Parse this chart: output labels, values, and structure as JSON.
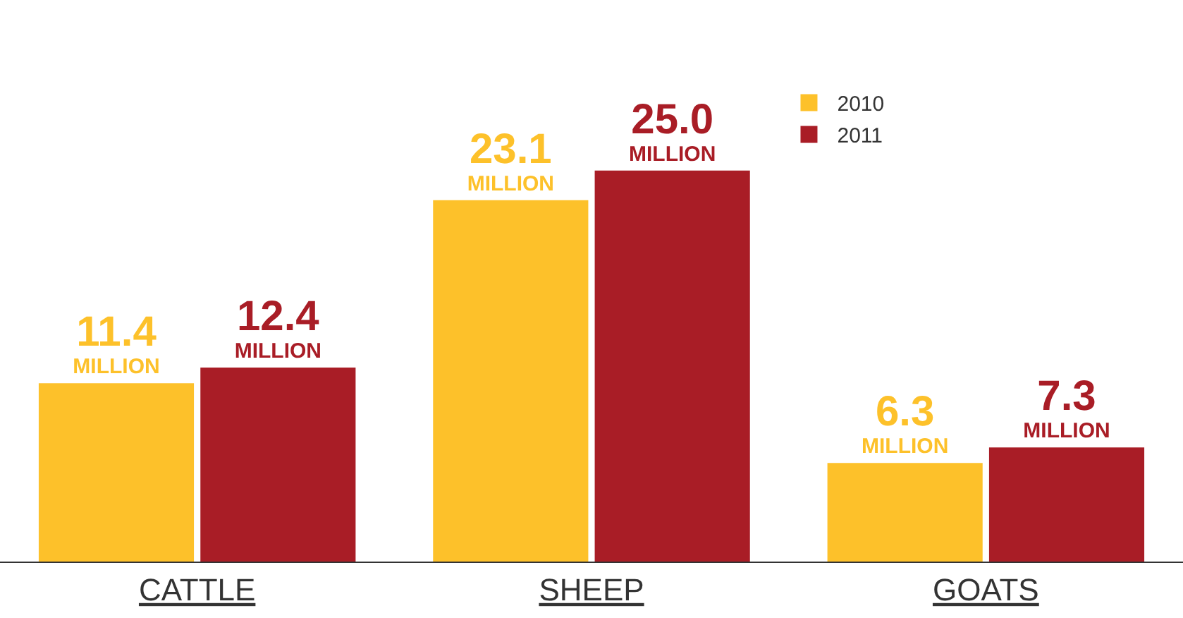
{
  "chart_data": {
    "type": "bar",
    "categories": [
      "CATTLE",
      "SHEEP",
      "GOATS"
    ],
    "series": [
      {
        "name": "2010",
        "color": "#fdc12a",
        "values": [
          11.4,
          23.1,
          6.3
        ],
        "value_labels": [
          "11.4\nMILLION",
          "23.1\nMILLION",
          "6.3\nMILLION"
        ]
      },
      {
        "name": "2011",
        "color": "#a91d26",
        "values": [
          12.4,
          25.0,
          7.3
        ],
        "value_labels": [
          "12.4\nMILLION",
          "25.0\nMILLION",
          "7.3\nMILLION"
        ]
      }
    ],
    "legend": "top right",
    "tick_labels": "x"
  }
}
